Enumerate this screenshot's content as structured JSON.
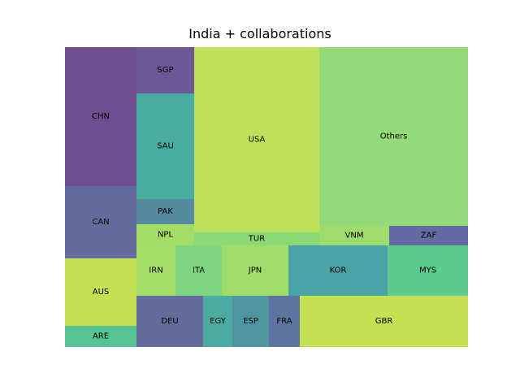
{
  "chart_data": {
    "type": "treemap",
    "title": "India + collaborations",
    "cells": [
      {
        "label": "CHN",
        "value": 150,
        "color": "#6f4e90"
      },
      {
        "label": "CAN",
        "value": 78,
        "color": "#636c9d"
      },
      {
        "label": "AUS",
        "value": 72,
        "color": "#c3e152"
      },
      {
        "label": "ARE",
        "value": 22,
        "color": "#56c490"
      },
      {
        "label": "SGP",
        "value": 34,
        "color": "#6f5797"
      },
      {
        "label": "SAU",
        "value": 93,
        "color": "#4aad9f"
      },
      {
        "label": "PAK",
        "value": 22,
        "color": "#5789a0"
      },
      {
        "label": "NPL",
        "value": 19,
        "color": "#a3dc66"
      },
      {
        "label": "USA",
        "value": 342,
        "color": "#bde15a"
      },
      {
        "label": "TUR",
        "value": 24,
        "color": "#8ad974"
      },
      {
        "label": "Others",
        "value": 400,
        "color": "#94da79"
      },
      {
        "label": "VNM",
        "value": 21,
        "color": "#9edc6d"
      },
      {
        "label": "ZAF",
        "value": 23,
        "color": "#646ba2"
      },
      {
        "label": "IRN",
        "value": 28,
        "color": "#a4de6b"
      },
      {
        "label": "ITA",
        "value": 33,
        "color": "#7ed681"
      },
      {
        "label": "JPN",
        "value": 48,
        "color": "#a0dc6a"
      },
      {
        "label": "KOR",
        "value": 71,
        "color": "#4aa3a4"
      },
      {
        "label": "MYS",
        "value": 71,
        "color": "#5cc98d"
      },
      {
        "label": "DEU",
        "value": 51,
        "color": "#636c9d"
      },
      {
        "label": "EGY",
        "value": 22,
        "color": "#4aab9e"
      },
      {
        "label": "ESP",
        "value": 28,
        "color": "#4f96a1"
      },
      {
        "label": "FRA",
        "value": 23,
        "color": "#5f75a1"
      },
      {
        "label": "GBR",
        "value": 131,
        "color": "#c3e152"
      }
    ]
  }
}
